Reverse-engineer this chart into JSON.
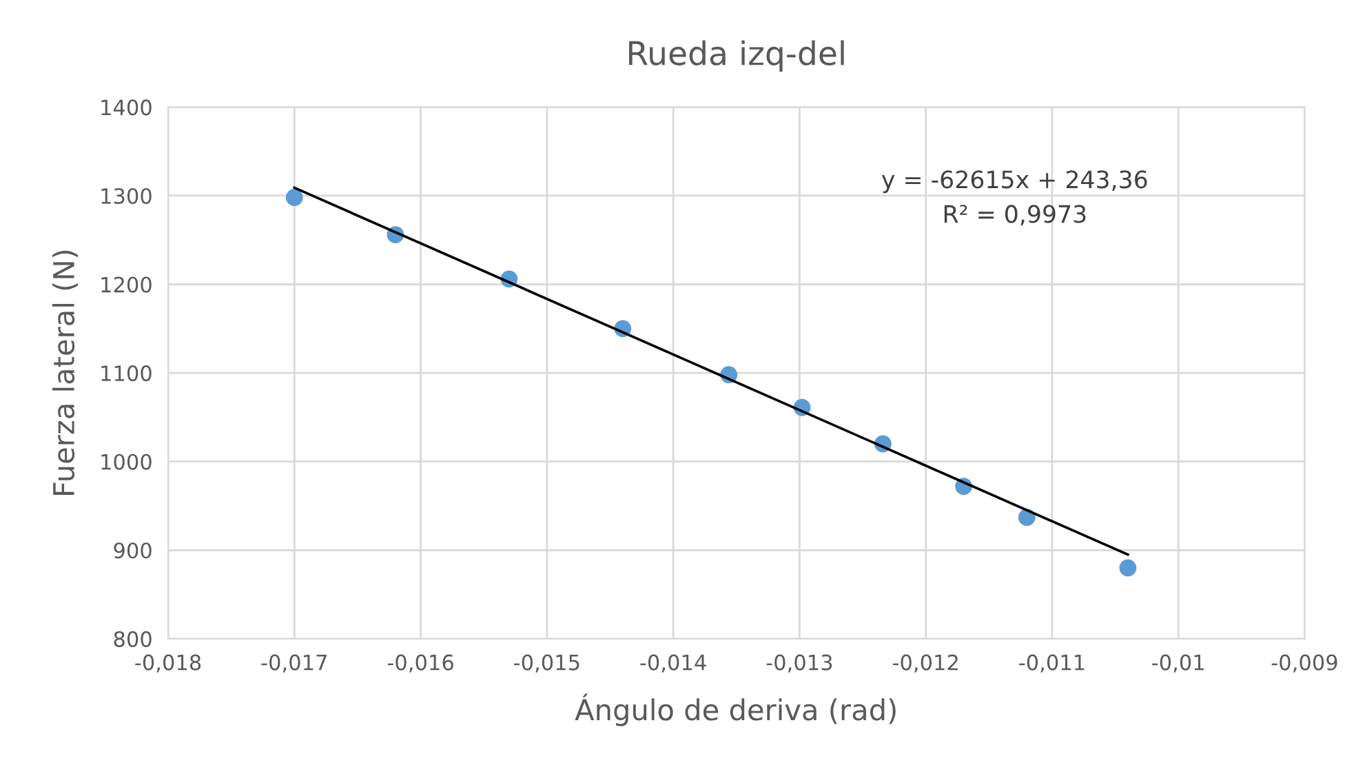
{
  "chart_data": {
    "type": "scatter",
    "title": "Rueda izq-del",
    "xlabel": "Ángulo de deriva (rad)",
    "ylabel": "Fuerza lateral (N)",
    "series": [
      {
        "color": "#5b9bd5",
        "marker": "circle",
        "x": [
          -0.017,
          -0.0162,
          -0.0153,
          -0.0144,
          -0.01356,
          -0.01298,
          -0.01234,
          -0.0117,
          -0.0112,
          -0.0104
        ],
        "values": [
          1298,
          1256,
          1206,
          1150,
          1098,
          1061,
          1020,
          972,
          937,
          880
        ]
      },
      {
        "type": "line",
        "color": "#000000",
        "marker": "none",
        "line_style": "solid",
        "x": [
          -0.017,
          -0.0104
        ],
        "values": [
          1309,
          895
        ]
      }
    ],
    "annotations": [
      "y = -62615x + 243,36",
      "R² = 0,9973"
    ],
    "xlim": [
      -0.018,
      -0.009
    ],
    "ylim": [
      800,
      1400
    ],
    "xticks": [
      {
        "value": -0.018,
        "label": "-0,018"
      },
      {
        "value": -0.017,
        "label": "-0,017"
      },
      {
        "value": -0.016,
        "label": "-0,016"
      },
      {
        "value": -0.015,
        "label": "-0,015"
      },
      {
        "value": -0.014,
        "label": "-0,014"
      },
      {
        "value": -0.013,
        "label": "-0,013"
      },
      {
        "value": -0.012,
        "label": "-0,012"
      },
      {
        "value": -0.011,
        "label": "-0,011"
      },
      {
        "value": -0.01,
        "label": "-0,01"
      },
      {
        "value": -0.009,
        "label": "-0,009"
      }
    ],
    "yticks": [
      800,
      900,
      1000,
      1100,
      1200,
      1300,
      1400
    ],
    "grid": true,
    "legend": false
  }
}
